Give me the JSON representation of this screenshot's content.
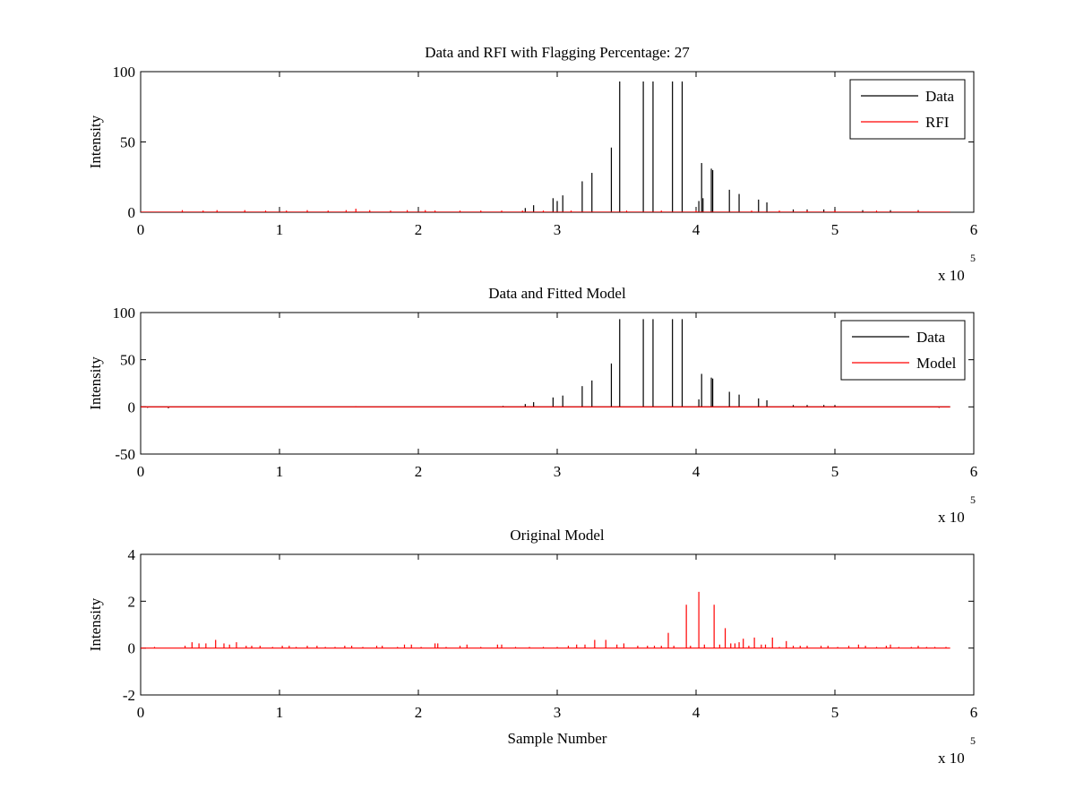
{
  "chart_data": [
    {
      "type": "line",
      "title": "Data and RFI with Flagging Percentage: 27",
      "xlabel": "",
      "ylabel": "Intensity",
      "xlim": [
        0,
        6
      ],
      "ylim": [
        0,
        100
      ],
      "xticks": [
        "0",
        "1",
        "2",
        "3",
        "4",
        "5",
        "6"
      ],
      "yticks": [
        "0",
        "50",
        "100"
      ],
      "x_multiplier": {
        "base": "x 10",
        "exponent": "5"
      },
      "legend": {
        "placement": "top-right",
        "entries": [
          "Data",
          "RFI"
        ]
      },
      "grid": false,
      "series": [
        {
          "name": "Data",
          "color": "#000000",
          "x_max": 5.83,
          "spikes": [
            [
              2.77,
              3
            ],
            [
              2.83,
              5
            ],
            [
              2.97,
              10
            ],
            [
              3.0,
              8
            ],
            [
              3.04,
              12
            ],
            [
              3.18,
              22
            ],
            [
              3.25,
              28
            ],
            [
              3.39,
              46
            ],
            [
              3.45,
              93
            ],
            [
              3.62,
              93
            ],
            [
              3.69,
              93
            ],
            [
              3.83,
              93
            ],
            [
              3.9,
              93
            ],
            [
              4.02,
              8
            ],
            [
              4.04,
              35
            ],
            [
              4.05,
              10
            ],
            [
              4.11,
              31
            ],
            [
              4.12,
              30
            ],
            [
              4.24,
              16
            ],
            [
              4.31,
              13
            ],
            [
              4.45,
              9
            ],
            [
              4.51,
              7
            ],
            [
              4.7,
              2
            ],
            [
              4.8,
              2
            ],
            [
              4.92,
              2
            ],
            [
              5.0,
              2
            ],
            [
              5.2,
              1.5
            ],
            [
              5.4,
              1.5
            ],
            [
              5.6,
              1.5
            ]
          ]
        },
        {
          "name": "RFI",
          "color": "#ff0000",
          "x_max": 5.83,
          "spikes": [
            [
              0.3,
              1.5
            ],
            [
              0.45,
              1.2
            ],
            [
              0.55,
              1.5
            ],
            [
              0.75,
              1.5
            ],
            [
              0.9,
              1.2
            ],
            [
              1.05,
              1.2
            ],
            [
              1.2,
              1.5
            ],
            [
              1.35,
              1.2
            ],
            [
              1.48,
              1.5
            ],
            [
              1.55,
              2.5
            ],
            [
              1.65,
              1.5
            ],
            [
              1.8,
              1.2
            ],
            [
              1.92,
              1.5
            ],
            [
              2.05,
              1.5
            ],
            [
              2.12,
              1.2
            ],
            [
              2.3,
              1.2
            ],
            [
              2.45,
              1.2
            ],
            [
              2.6,
              1.2
            ],
            [
              2.75,
              1.2
            ],
            [
              2.9,
              1.2
            ],
            [
              3.1,
              1.2
            ],
            [
              3.5,
              1.2
            ],
            [
              3.75,
              1.2
            ],
            [
              4.0,
              1.2
            ],
            [
              4.4,
              1.2
            ],
            [
              4.6,
              1.2
            ],
            [
              4.8,
              1.2
            ],
            [
              5.0,
              1.2
            ],
            [
              5.3,
              1.2
            ],
            [
              5.6,
              1.2
            ]
          ]
        }
      ]
    },
    {
      "type": "line",
      "title": "Data and Fitted Model",
      "xlabel": "",
      "ylabel": "Intensity",
      "xlim": [
        0,
        6
      ],
      "ylim": [
        -50,
        100
      ],
      "xticks": [
        "0",
        "1",
        "2",
        "3",
        "4",
        "5",
        "6"
      ],
      "yticks": [
        "-50",
        "0",
        "50",
        "100"
      ],
      "x_multiplier": {
        "base": "x 10",
        "exponent": "5"
      },
      "legend": {
        "placement": "top-right",
        "entries": [
          "Data",
          "Model"
        ]
      },
      "grid": false,
      "series": [
        {
          "name": "Data",
          "color": "#000000",
          "x_max": 5.83,
          "spikes": [
            [
              0.05,
              -1
            ],
            [
              0.2,
              -1.5
            ],
            [
              2.61,
              1
            ],
            [
              2.77,
              3
            ],
            [
              2.83,
              5
            ],
            [
              2.97,
              10
            ],
            [
              3.04,
              12
            ],
            [
              3.18,
              22
            ],
            [
              3.25,
              28
            ],
            [
              3.39,
              46
            ],
            [
              3.45,
              93
            ],
            [
              3.62,
              93
            ],
            [
              3.69,
              93
            ],
            [
              3.83,
              93
            ],
            [
              3.9,
              93
            ],
            [
              4.02,
              8
            ],
            [
              4.04,
              35
            ],
            [
              4.11,
              31
            ],
            [
              4.12,
              30
            ],
            [
              4.24,
              16
            ],
            [
              4.31,
              13
            ],
            [
              4.45,
              9
            ],
            [
              4.51,
              7
            ],
            [
              4.7,
              2
            ],
            [
              4.8,
              2
            ],
            [
              4.92,
              2
            ],
            [
              5.0,
              2
            ],
            [
              5.75,
              -1
            ]
          ]
        },
        {
          "name": "Model",
          "color": "#ff0000",
          "x_max": 5.83,
          "spikes": [
            [
              0.05,
              -0.5
            ],
            [
              0.2,
              -0.8
            ],
            [
              1.55,
              0.8
            ],
            [
              5.75,
              -0.5
            ]
          ]
        }
      ]
    },
    {
      "type": "line",
      "title": "Original Model",
      "xlabel": "Sample Number",
      "ylabel": "Intensity",
      "xlim": [
        0,
        6
      ],
      "ylim": [
        -2,
        4
      ],
      "xticks": [
        "0",
        "1",
        "2",
        "3",
        "4",
        "5",
        "6"
      ],
      "yticks": [
        "-2",
        "0",
        "2",
        "4"
      ],
      "x_multiplier": {
        "base": "x 10",
        "exponent": "5"
      },
      "legend": null,
      "grid": false,
      "series": [
        {
          "color": "#ff0000",
          "x_max": 5.83,
          "spikes": [
            [
              0.1,
              0.05
            ],
            [
              0.32,
              0.1
            ],
            [
              0.37,
              0.25
            ],
            [
              0.42,
              0.2
            ],
            [
              0.47,
              0.2
            ],
            [
              0.54,
              0.35
            ],
            [
              0.6,
              0.2
            ],
            [
              0.64,
              0.15
            ],
            [
              0.69,
              0.25
            ],
            [
              0.76,
              0.1
            ],
            [
              0.8,
              0.1
            ],
            [
              0.86,
              0.1
            ],
            [
              0.95,
              0.05
            ],
            [
              1.02,
              0.1
            ],
            [
              1.07,
              0.1
            ],
            [
              1.12,
              0.05
            ],
            [
              1.2,
              0.1
            ],
            [
              1.27,
              0.1
            ],
            [
              1.33,
              0.05
            ],
            [
              1.4,
              0.05
            ],
            [
              1.47,
              0.1
            ],
            [
              1.52,
              0.1
            ],
            [
              1.6,
              0.05
            ],
            [
              1.7,
              0.1
            ],
            [
              1.74,
              0.1
            ],
            [
              1.85,
              0.05
            ],
            [
              1.9,
              0.15
            ],
            [
              1.95,
              0.15
            ],
            [
              2.02,
              0.05
            ],
            [
              2.12,
              0.2
            ],
            [
              2.14,
              0.2
            ],
            [
              2.2,
              0.05
            ],
            [
              2.3,
              0.1
            ],
            [
              2.35,
              0.15
            ],
            [
              2.45,
              0.05
            ],
            [
              2.57,
              0.15
            ],
            [
              2.6,
              0.15
            ],
            [
              2.7,
              0.05
            ],
            [
              2.8,
              0.05
            ],
            [
              2.9,
              0.05
            ],
            [
              3.0,
              0.05
            ],
            [
              3.08,
              0.1
            ],
            [
              3.14,
              0.15
            ],
            [
              3.2,
              0.15
            ],
            [
              3.27,
              0.35
            ],
            [
              3.35,
              0.35
            ],
            [
              3.43,
              0.15
            ],
            [
              3.48,
              0.2
            ],
            [
              3.58,
              0.1
            ],
            [
              3.65,
              0.1
            ],
            [
              3.7,
              0.1
            ],
            [
              3.75,
              0.1
            ],
            [
              3.8,
              0.65
            ],
            [
              3.84,
              0.1
            ],
            [
              3.93,
              1.85
            ],
            [
              3.96,
              0.1
            ],
            [
              4.02,
              2.4
            ],
            [
              4.06,
              0.15
            ],
            [
              4.13,
              1.85
            ],
            [
              4.17,
              0.15
            ],
            [
              4.21,
              0.85
            ],
            [
              4.25,
              0.2
            ],
            [
              4.28,
              0.2
            ],
            [
              4.31,
              0.25
            ],
            [
              4.34,
              0.4
            ],
            [
              4.38,
              0.1
            ],
            [
              4.42,
              0.45
            ],
            [
              4.47,
              0.15
            ],
            [
              4.5,
              0.15
            ],
            [
              4.55,
              0.45
            ],
            [
              4.6,
              0.05
            ],
            [
              4.65,
              0.3
            ],
            [
              4.7,
              0.1
            ],
            [
              4.75,
              0.1
            ],
            [
              4.8,
              0.1
            ],
            [
              4.9,
              0.1
            ],
            [
              4.95,
              0.1
            ],
            [
              5.02,
              0.05
            ],
            [
              5.1,
              0.1
            ],
            [
              5.17,
              0.15
            ],
            [
              5.22,
              0.1
            ],
            [
              5.3,
              0.05
            ],
            [
              5.37,
              0.1
            ],
            [
              5.4,
              0.15
            ],
            [
              5.46,
              0.05
            ],
            [
              5.55,
              0.05
            ],
            [
              5.6,
              0.1
            ],
            [
              5.66,
              0.05
            ],
            [
              5.72,
              0.05
            ],
            [
              5.8,
              0.05
            ]
          ]
        }
      ]
    }
  ]
}
